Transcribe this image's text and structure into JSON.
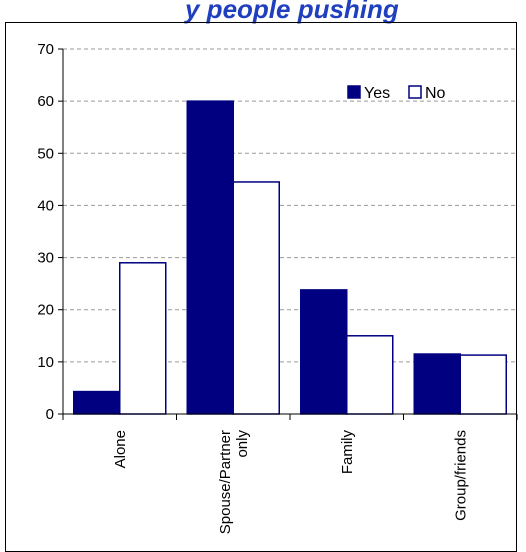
{
  "title_fragment": "y people pushing",
  "chart_data": {
    "type": "bar",
    "categories": [
      "Alone",
      "Spouse/Partner only",
      "Family",
      "Group/friends"
    ],
    "category_lines": [
      [
        "Alone"
      ],
      [
        "Spouse/Partner",
        "only"
      ],
      [
        "Family"
      ],
      [
        "Group/friends"
      ]
    ],
    "series": [
      {
        "name": "Yes",
        "values": [
          4.3,
          60,
          23.8,
          11.5
        ],
        "color": "#000080"
      },
      {
        "name": "No",
        "values": [
          29,
          44.5,
          15,
          11.3
        ],
        "color": "#ffffff"
      }
    ],
    "ylim": [
      0,
      70
    ],
    "yticks": [
      0,
      10,
      20,
      30,
      40,
      50,
      60,
      70
    ],
    "grid": true,
    "legend": "top-right"
  }
}
